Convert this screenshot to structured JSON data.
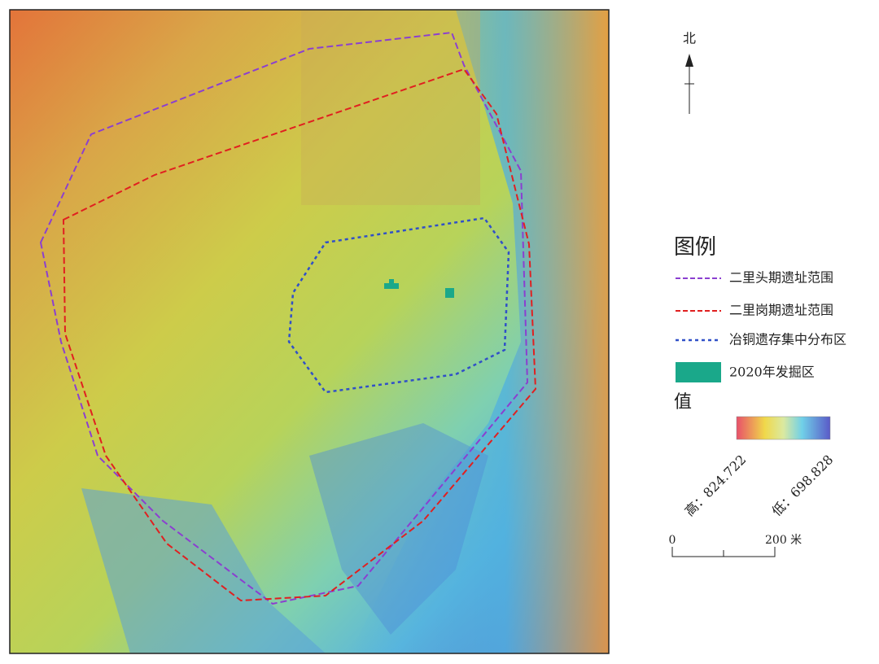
{
  "north": "北",
  "legend": {
    "title": "图例",
    "items": [
      {
        "label": "二里头期遗址范围"
      },
      {
        "label": "二里岗期遗址范围"
      },
      {
        "label": "冶铜遗存集中分布区"
      },
      {
        "label": "2020年发掘区"
      }
    ],
    "value_title": "值",
    "high": "高：824.722",
    "low": "低：698.828"
  },
  "scale": {
    "start": "0",
    "end": "200 米"
  }
}
